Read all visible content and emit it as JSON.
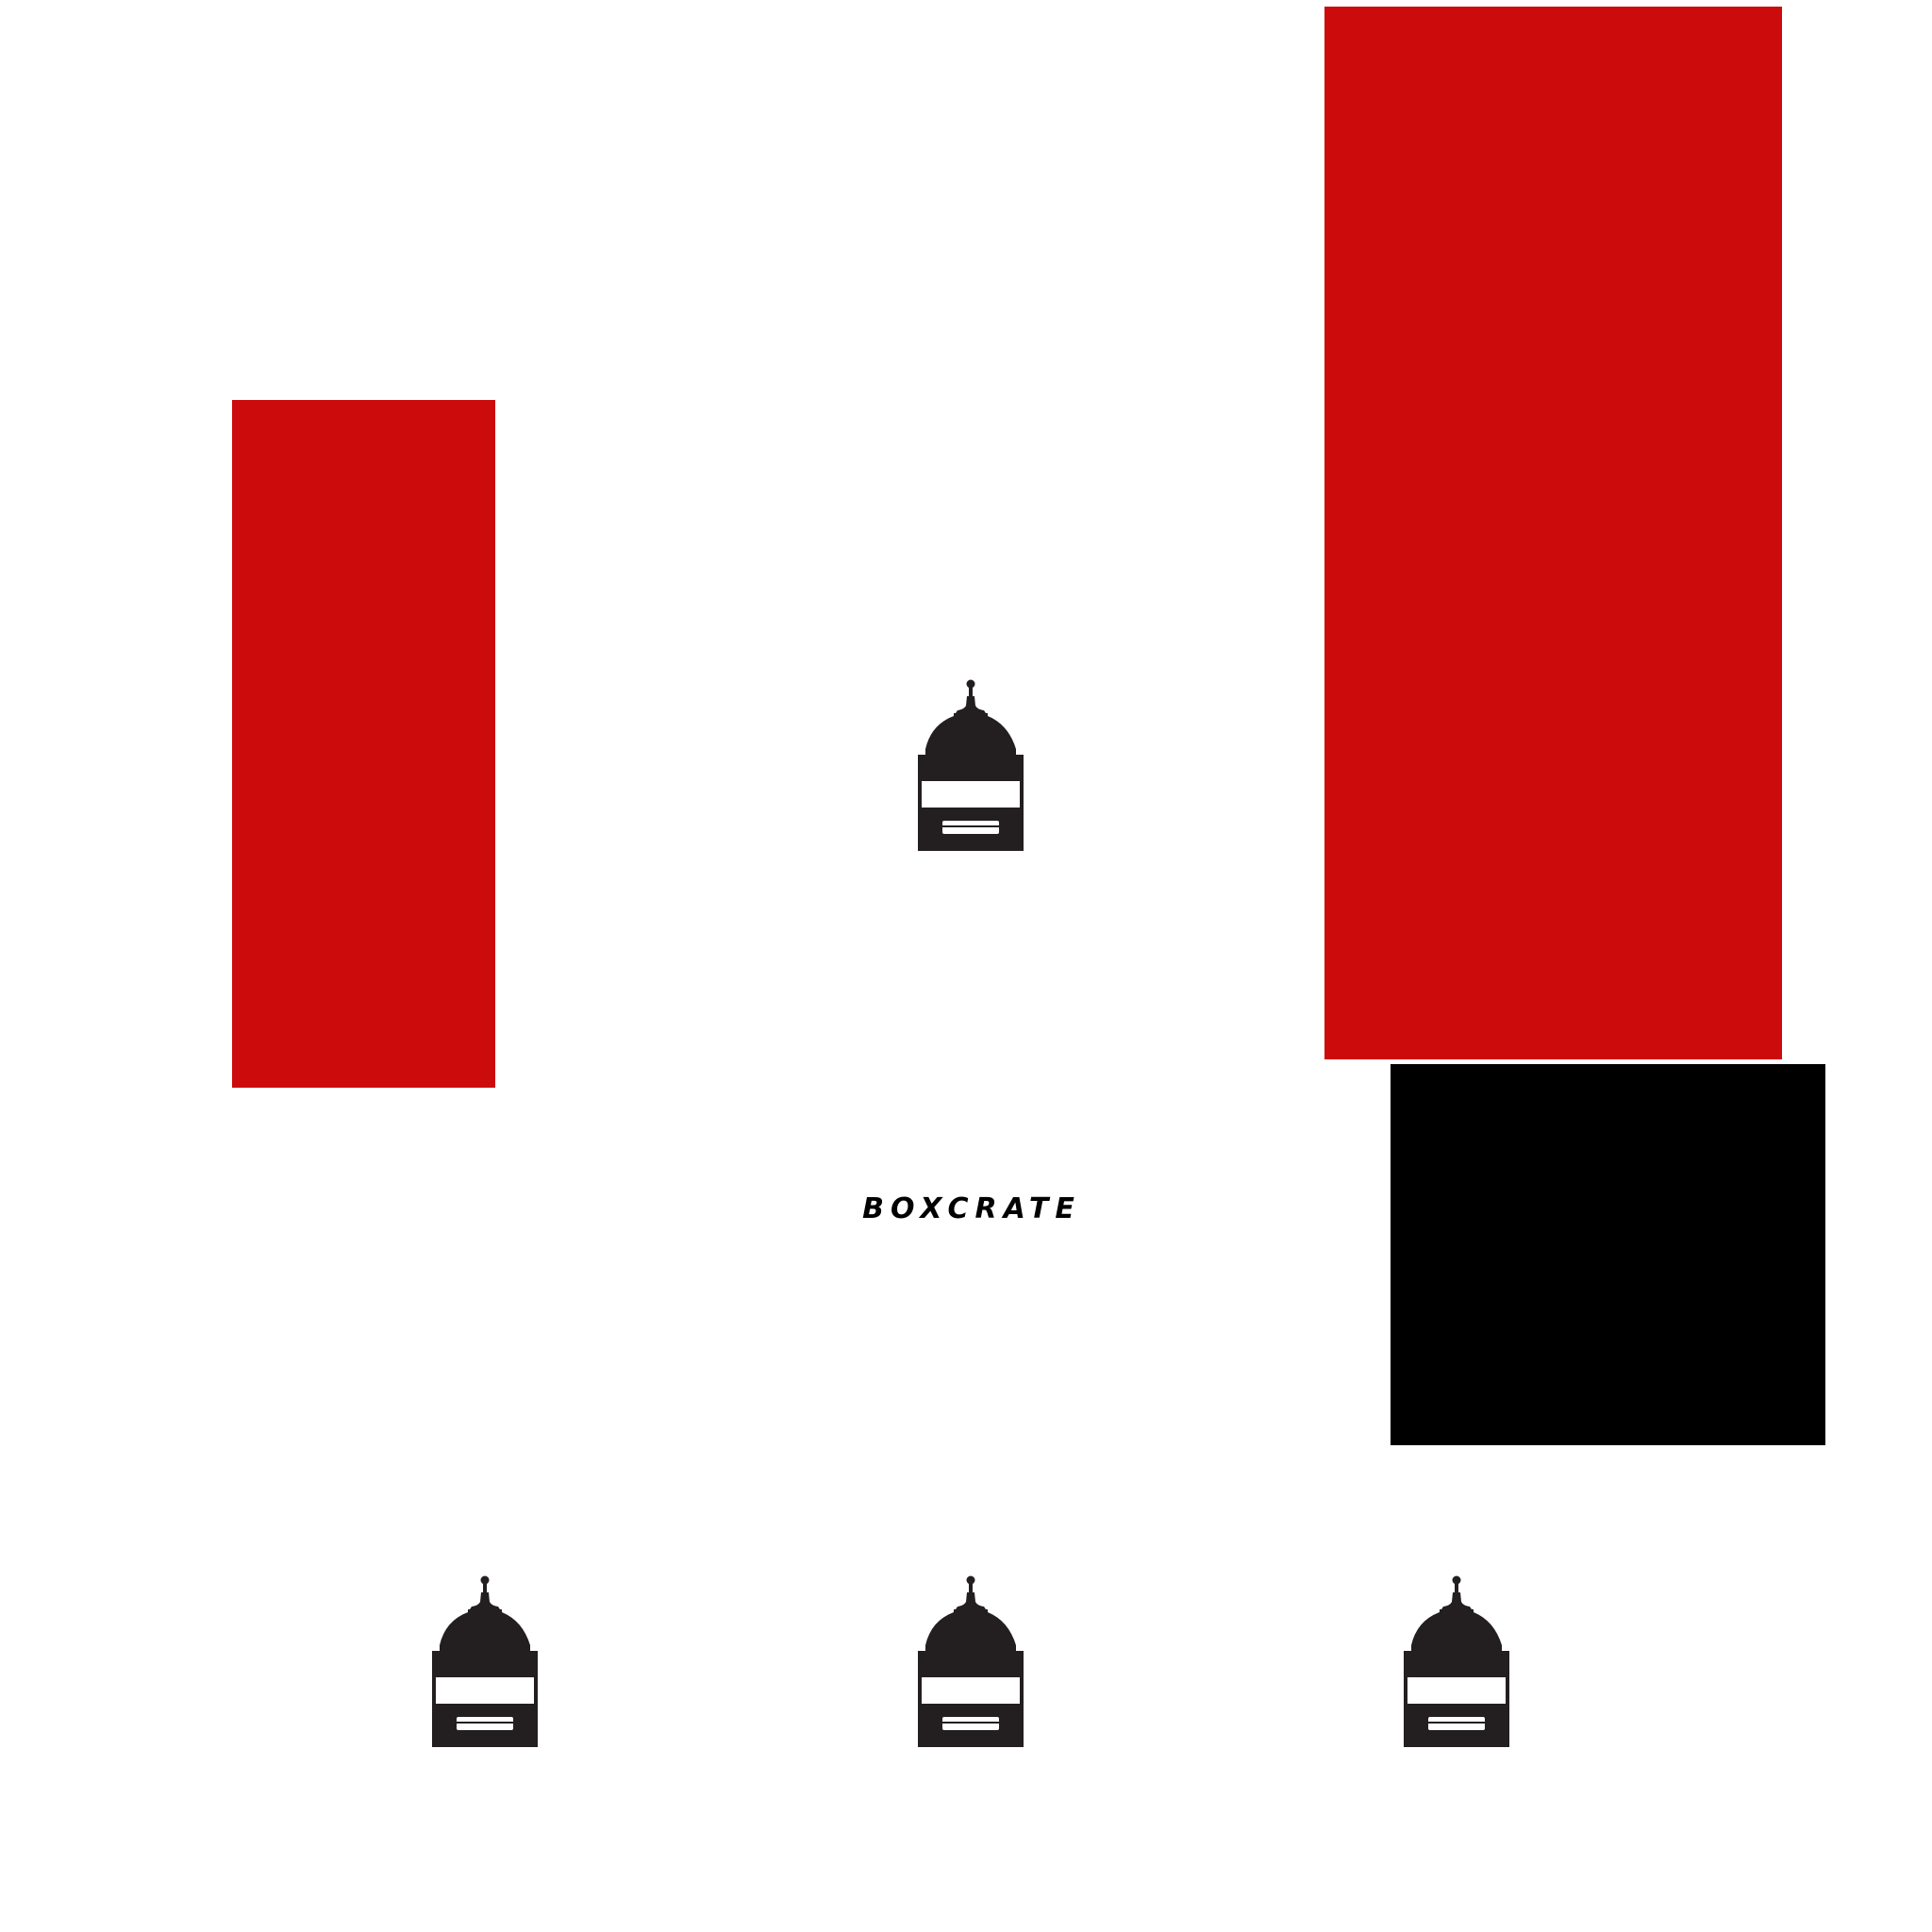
{
  "colors": {
    "background": "#ffffff",
    "accent_red": "#cc0c0c",
    "block_black": "#000000",
    "icon_dark": "#231f20"
  },
  "icons": {
    "center": "dome-lantern-icon",
    "bottom_row": [
      "dome-lantern-icon",
      "dome-lantern-icon",
      "dome-lantern-icon"
    ]
  },
  "brand": {
    "wordmark": "BOXCRATE"
  }
}
